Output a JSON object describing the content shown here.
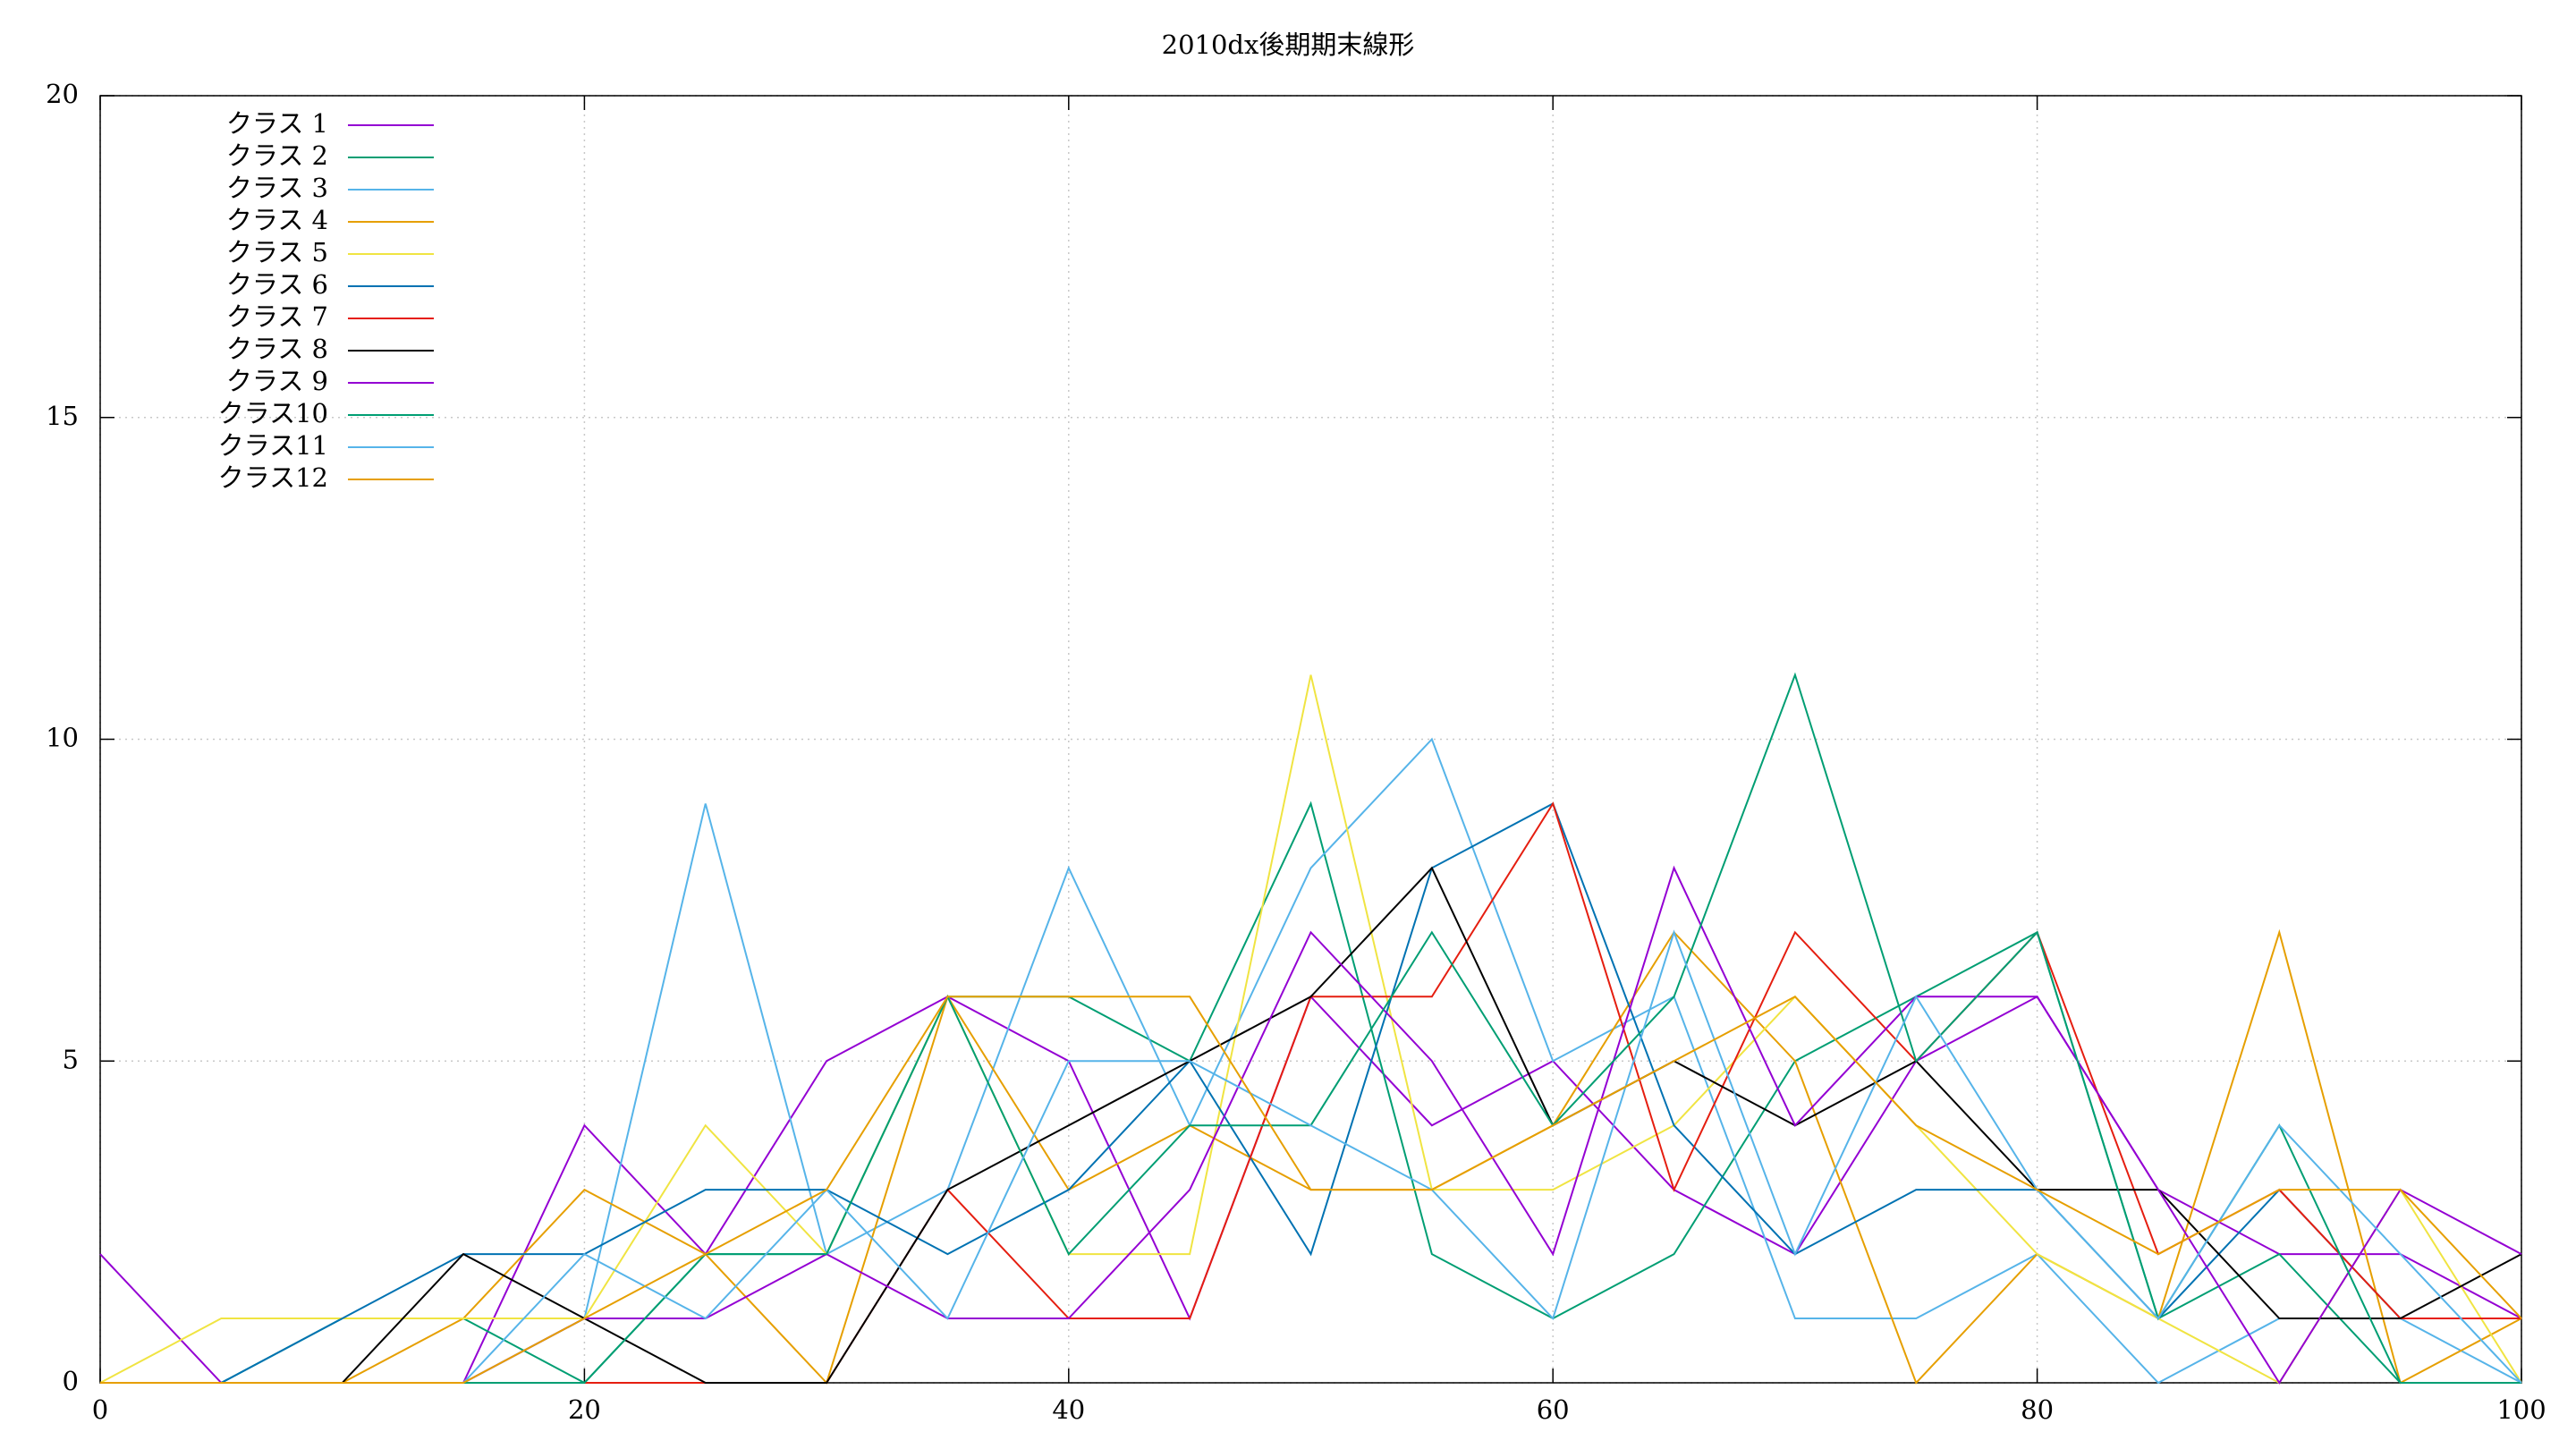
{
  "chart_data": {
    "type": "line",
    "title": "2010dx後期期末線形",
    "x": [
      0,
      5,
      10,
      15,
      20,
      25,
      30,
      35,
      40,
      45,
      50,
      55,
      60,
      65,
      70,
      75,
      80,
      85,
      90,
      95,
      100
    ],
    "xlim": [
      0,
      100
    ],
    "xticks": [
      0,
      20,
      40,
      60,
      80,
      100
    ],
    "ylim": [
      0,
      20
    ],
    "yticks": [
      0,
      5,
      10,
      15,
      20
    ],
    "grid": true,
    "legend": "top-left",
    "series": [
      {
        "name": "クラス 1",
        "color": "#9400d3",
        "values": [
          2,
          0,
          0,
          0,
          4,
          2,
          5,
          6,
          5,
          1,
          6,
          4,
          5,
          3,
          2,
          5,
          6,
          3,
          2,
          2,
          1
        ]
      },
      {
        "name": "クラス 2",
        "color": "#009e73",
        "values": [
          0,
          0,
          1,
          1,
          0,
          2,
          2,
          6,
          6,
          5,
          9,
          2,
          1,
          2,
          5,
          6,
          7,
          1,
          2,
          0,
          0
        ]
      },
      {
        "name": "クラス 3",
        "color": "#56b4e9",
        "values": [
          0,
          0,
          0,
          0,
          1,
          9,
          2,
          3,
          8,
          4,
          8,
          10,
          5,
          6,
          1,
          1,
          2,
          0,
          1,
          1,
          0
        ]
      },
      {
        "name": "クラス 4",
        "color": "#e69f00",
        "values": [
          0,
          0,
          0,
          1,
          3,
          2,
          0,
          6,
          3,
          4,
          3,
          3,
          4,
          7,
          5,
          0,
          2,
          1,
          7,
          0,
          1
        ]
      },
      {
        "name": "クラス 5",
        "color": "#f0e442",
        "values": [
          0,
          1,
          1,
          1,
          1,
          4,
          2,
          6,
          2,
          2,
          11,
          3,
          3,
          4,
          6,
          4,
          2,
          1,
          0,
          3,
          0
        ]
      },
      {
        "name": "クラス 6",
        "color": "#0072b2",
        "values": [
          0,
          0,
          1,
          2,
          2,
          3,
          3,
          2,
          3,
          5,
          2,
          8,
          9,
          4,
          2,
          3,
          3,
          1,
          3,
          1,
          1
        ]
      },
      {
        "name": "クラス 7",
        "color": "#e51e10",
        "values": [
          0,
          0,
          0,
          0,
          0,
          0,
          0,
          3,
          1,
          1,
          6,
          6,
          9,
          3,
          7,
          5,
          7,
          2,
          3,
          1,
          1
        ]
      },
      {
        "name": "クラス 8",
        "color": "#000000",
        "values": [
          0,
          0,
          0,
          2,
          1,
          0,
          0,
          3,
          4,
          5,
          6,
          8,
          4,
          5,
          4,
          5,
          3,
          3,
          1,
          1,
          2
        ]
      },
      {
        "name": "クラス 9",
        "color": "#9400d3",
        "values": [
          0,
          0,
          0,
          0,
          1,
          1,
          2,
          1,
          1,
          3,
          7,
          5,
          2,
          8,
          4,
          6,
          6,
          3,
          0,
          3,
          2
        ]
      },
      {
        "name": "クラス10",
        "color": "#009e73",
        "values": [
          0,
          0,
          0,
          0,
          0,
          2,
          2,
          6,
          2,
          4,
          4,
          7,
          4,
          6,
          11,
          5,
          7,
          1,
          4,
          0,
          0
        ]
      },
      {
        "name": "クラス11",
        "color": "#56b4e9",
        "values": [
          0,
          0,
          0,
          0,
          2,
          1,
          3,
          1,
          5,
          5,
          4,
          3,
          1,
          7,
          2,
          6,
          3,
          1,
          4,
          2,
          0
        ]
      },
      {
        "name": "クラス12",
        "color": "#e69f00",
        "values": [
          0,
          0,
          0,
          0,
          1,
          2,
          3,
          6,
          6,
          6,
          3,
          3,
          4,
          5,
          6,
          4,
          3,
          2,
          3,
          3,
          1
        ]
      }
    ]
  }
}
